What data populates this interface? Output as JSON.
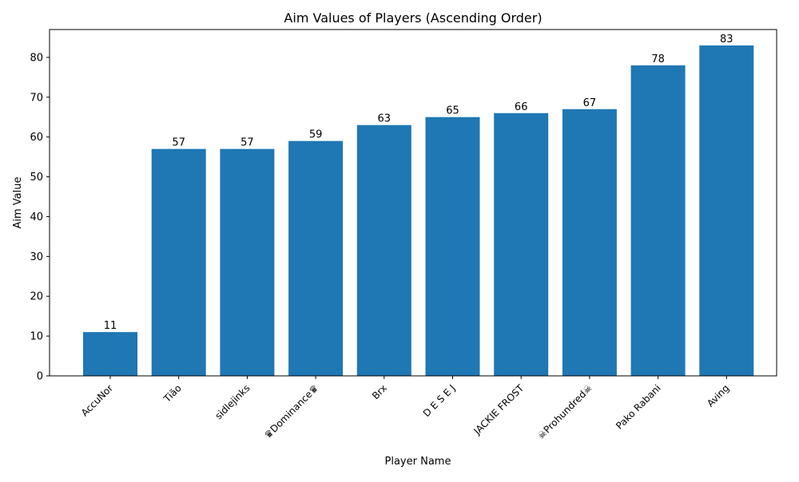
{
  "chart_data": {
    "type": "bar",
    "title": "Aim Values of Players (Ascending Order)",
    "xlabel": "Player Name",
    "ylabel": "Aim Value",
    "categories": [
      "AccuNor",
      "Tião",
      "sidlejinks",
      "♛Dominance♛",
      "Brx",
      "D E S E J",
      "JACKIE FROST",
      "☠Prohundred☠",
      "Pako Rabani",
      "Aving"
    ],
    "values": [
      11,
      57,
      57,
      59,
      63,
      65,
      66,
      67,
      78,
      83
    ],
    "ylim": [
      0,
      87
    ],
    "yticks": [
      0,
      10,
      20,
      30,
      40,
      50,
      60,
      70,
      80
    ],
    "bar_color": "#1f77b4",
    "grid": false,
    "legend": "none",
    "data_labels": true
  }
}
